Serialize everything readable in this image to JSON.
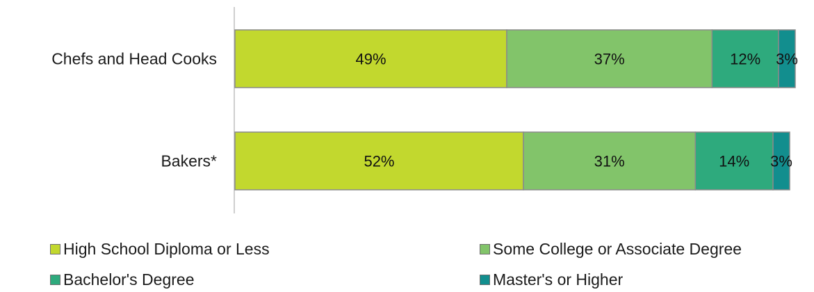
{
  "chart_data": {
    "type": "bar",
    "orientation": "horizontal",
    "stacked": true,
    "categories": [
      "Chefs and Head Cooks",
      "Bakers*"
    ],
    "series": [
      {
        "name": "High School Diploma or Less",
        "values": [
          49,
          52
        ],
        "labels": [
          "49%",
          "52%"
        ],
        "color": "#c2d82e"
      },
      {
        "name": "Some College or Associate Degree",
        "values": [
          37,
          31
        ],
        "labels": [
          "37%",
          "31%"
        ],
        "color": "#82c46a"
      },
      {
        "name": "Bachelor's Degree",
        "values": [
          12,
          14
        ],
        "labels": [
          "12%",
          "14%"
        ],
        "color": "#2eaa7d"
      },
      {
        "name": "Master's or Higher",
        "values": [
          3,
          3
        ],
        "labels": [
          "3%",
          "3%"
        ],
        "color": "#128e8e"
      }
    ],
    "xlim": [
      0,
      100
    ],
    "grid": false,
    "legend_position": "bottom"
  }
}
